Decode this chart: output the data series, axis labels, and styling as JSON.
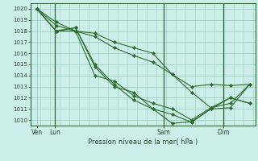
{
  "xlabel": "Pression niveau de la mer( hPa )",
  "bg_color": "#cceee8",
  "grid_color": "#99ccbb",
  "line_color": "#2d6a2d",
  "marker_color": "#2d6a2d",
  "ylim": [
    1009.5,
    1020.5
  ],
  "yticks": [
    1010,
    1011,
    1012,
    1013,
    1014,
    1015,
    1016,
    1017,
    1018,
    1019,
    1020
  ],
  "xlim": [
    -0.3,
    11.3
  ],
  "vline_x": [
    0.95,
    6.55,
    9.65
  ],
  "xtick_labels_pos": [
    0.0,
    0.95,
    6.55,
    9.65
  ],
  "xtick_labels": [
    "Ven",
    "Lun",
    "Sam",
    "Dim"
  ],
  "series": [
    [
      1020.0,
      1018.8,
      1018.0,
      1017.5,
      1016.5,
      1015.8,
      1015.2,
      1014.1,
      1012.5,
      1011.1,
      1011.5,
      1013.2
    ],
    [
      1020.0,
      1018.0,
      1018.3,
      1015.0,
      1013.2,
      1011.8,
      1011.0,
      1009.7,
      1009.85,
      1011.0,
      1011.1,
      1013.2
    ],
    [
      1020.0,
      1018.0,
      1018.3,
      1014.8,
      1013.0,
      1012.5,
      1011.0,
      1010.5,
      1009.8,
      1011.0,
      1012.0,
      1011.5
    ],
    [
      1020.0,
      1018.0,
      1018.0,
      1014.0,
      1013.5,
      1012.2,
      1011.5,
      1011.0,
      1010.0,
      1011.1,
      1012.0,
      1011.5
    ],
    [
      1020.0,
      1018.5,
      1018.0,
      1017.8,
      1017.0,
      1016.5,
      1016.0,
      1014.1,
      1013.0,
      1013.2,
      1013.1,
      1013.2
    ]
  ],
  "x_positions": [
    0,
    1,
    2,
    3,
    4,
    5,
    6,
    7,
    8,
    9,
    10,
    11
  ]
}
